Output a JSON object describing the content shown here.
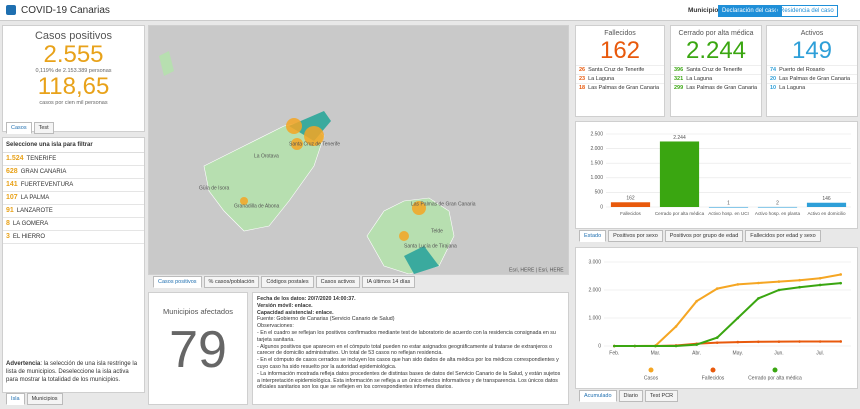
{
  "header": {
    "title": "COVID-19 Canarias",
    "filter_label": "Municipio",
    "buttons": [
      "Declaración del caso",
      "Residencia del caso"
    ]
  },
  "summary": {
    "title": "Casos positivos",
    "total": "2.555",
    "share": "0,119% de 2.153.389 personas",
    "rate": "118,65",
    "rate_label": "casos por cien mil personas",
    "tabs": [
      "Casos",
      "Test"
    ]
  },
  "islands": {
    "title": "Seleccione una isla para filtrar",
    "items": [
      {
        "count": "1.524",
        "name": "TENERIFE"
      },
      {
        "count": "628",
        "name": "GRAN CANARIA"
      },
      {
        "count": "141",
        "name": "FUERTEVENTURA"
      },
      {
        "count": "107",
        "name": "LA PALMA"
      },
      {
        "count": "91",
        "name": "LANZAROTE"
      },
      {
        "count": "8",
        "name": "LA GOMERA"
      },
      {
        "count": "3",
        "name": "EL HIERRO"
      }
    ],
    "warning_label": "Advertencia",
    "warning": ": la selección de una isla restringe la lista de municipios. Deseleccione la isla activa para mostrar la totalidad de los municipios.",
    "tabs": [
      "Isla",
      "Municipios"
    ]
  },
  "map": {
    "labels": [
      "La Orotava",
      "Santa Cruz de Tenerife",
      "Güía de Isora",
      "Granadilla de Abona",
      "Las Palmas de Gran Canaria",
      "Telde",
      "Santa Lucía de Tirajana"
    ],
    "attribution": "Esri, HERE | Esri, HERE",
    "tabs": [
      "Casos positivos",
      "% casos/población",
      "Códigos postales",
      "Casos activos",
      "IA últimos 14 días"
    ]
  },
  "municipalities": {
    "title": "Municipios afectados",
    "count": "79"
  },
  "notes": {
    "lines": [
      "Fecha de los datos: 20/7/2020 14:00:37.",
      "Versión móvil: enlace.",
      "Capacidad asistencial: enlace.",
      "Fuente: Gobierno de Canarias (Servicio Canario de Salud)",
      "Observaciones:",
      "- En el cuadro se reflejan los positivos confirmados mediante test de laboratorio de acuerdo con la residencia consignada en su tarjeta sanitaria.",
      "- Algunos positivos que aparecen en el cómputo total pueden no estar asignados geográficamente al tratarse de extranjeros o carecer de domicilio administrativo. Un total de 53 casos no reflejan residencia.",
      "- En el cómputo de casos cerrados se incluyen los casos que han sido dados de alta médica por los médicos correspondientes y cuyo caso ha sido resuelto por la autoridad epidemiológica.",
      "- La información mostrada refleja datos procedentes de distintas bases de datos del Servicio Canario de la Salud, y están sujetos a interpretación epidemiológica. Esta información se refleja a un único efectos informativos y de transparencia. Los únicos datos oficiales sanitarios son los que se reflejen en los correspondientes informes diarios."
    ]
  },
  "cards": [
    {
      "title": "Fallecidos",
      "value": "162",
      "color": "#e8590c",
      "items": [
        {
          "count": "26",
          "name": "Santa Cruz de Tenerife"
        },
        {
          "count": "23",
          "name": "La Laguna"
        },
        {
          "count": "18",
          "name": "Las Palmas de Gran Canaria"
        }
      ]
    },
    {
      "title": "Cerrado por alta médica",
      "value": "2.244",
      "color": "#3aa611",
      "items": [
        {
          "count": "396",
          "name": "Santa Cruz de Tenerife"
        },
        {
          "count": "321",
          "name": "La Laguna"
        },
        {
          "count": "299",
          "name": "Las Palmas de Gran Canaria"
        }
      ]
    },
    {
      "title": "Activos",
      "value": "149",
      "color": "#2e9fd8",
      "items": [
        {
          "count": "74",
          "name": "Puerto del Rosario"
        },
        {
          "count": "20",
          "name": "Las Palmas de Gran Canaria"
        },
        {
          "count": "10",
          "name": "La Laguna"
        }
      ]
    }
  ],
  "chart_tabs": {
    "bar": [
      "Estado",
      "Positivos por sexo",
      "Positivos por grupo de edad",
      "Fallecidos por edad y sexo"
    ],
    "line": [
      "Acumulado",
      "Diario",
      "Test PCR"
    ]
  },
  "chart_data": [
    {
      "type": "bar",
      "categories": [
        "Fallecidos",
        "Cerrado por alta médica",
        "Activo hosp. en UCI",
        "Activo hosp. en planta",
        "Activo en domicilio"
      ],
      "values": [
        162,
        2244,
        1,
        2,
        146
      ],
      "value_labels": [
        "162",
        "2.244",
        "1",
        "2",
        "146"
      ],
      "colors": [
        "#e8590c",
        "#3aa611",
        "#2e9fd8",
        "#2e9fd8",
        "#2e9fd8"
      ],
      "ylim": [
        0,
        2500
      ],
      "yticks": [
        0,
        500,
        {
          "value": 1000,
          "label": "1.000"
        },
        {
          "value": 1500,
          "label": "1.500"
        },
        {
          "value": 2000,
          "label": "2.000"
        },
        {
          "value": 2500,
          "label": "2.500"
        }
      ],
      "grid": true
    },
    {
      "type": "line",
      "categories": [
        "Feb.",
        null,
        "Mar.",
        null,
        "Abr.",
        null,
        "May.",
        null,
        "Jun.",
        null,
        "Jul.",
        null
      ],
      "series": [
        {
          "name": "Casos",
          "color": "#f5a623",
          "values": [
            0,
            0,
            10,
            700,
            1600,
            2050,
            2200,
            2250,
            2300,
            2350,
            2420,
            2555
          ]
        },
        {
          "name": "Fallecidos",
          "color": "#e8590c",
          "values": [
            0,
            0,
            0,
            20,
            80,
            120,
            140,
            150,
            155,
            160,
            161,
            162
          ]
        },
        {
          "name": "Cerrado por alta médica",
          "color": "#3aa611",
          "values": [
            0,
            0,
            0,
            0,
            50,
            300,
            1000,
            1700,
            2000,
            2100,
            2180,
            2244
          ]
        }
      ],
      "ylim": [
        0,
        3000
      ],
      "yticks": [
        0,
        {
          "value": 1000,
          "label": "1.000"
        },
        {
          "value": 2000,
          "label": "2.000"
        },
        {
          "value": 3000,
          "label": "3.000"
        }
      ],
      "grid": true,
      "legend": "bottom"
    }
  ]
}
